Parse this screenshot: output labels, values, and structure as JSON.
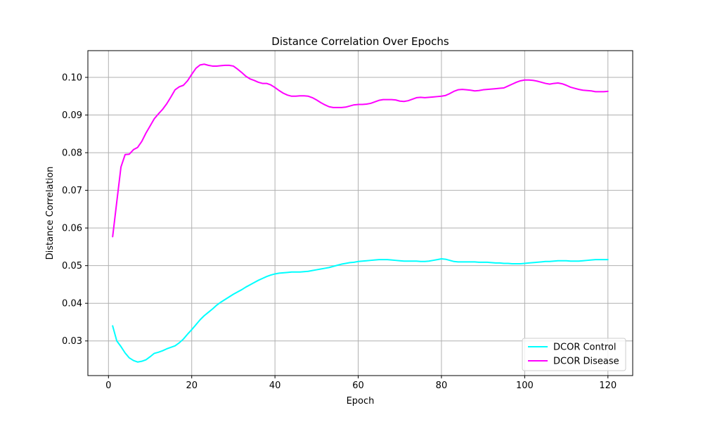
{
  "chart_data": {
    "type": "line",
    "title": "Distance Correlation Over Epochs",
    "xlabel": "Epoch",
    "ylabel": "Distance Correlation",
    "xlim": [
      -4.95,
      125.95
    ],
    "ylim": [
      0.0208,
      0.1071
    ],
    "xticks": [
      0,
      20,
      40,
      60,
      80,
      100,
      120
    ],
    "yticks": [
      0.03,
      0.04,
      0.05,
      0.06,
      0.07,
      0.08,
      0.09,
      0.1
    ],
    "ytick_labels": [
      "0.03",
      "0.04",
      "0.05",
      "0.06",
      "0.07",
      "0.08",
      "0.09",
      "0.10"
    ],
    "grid": true,
    "legend_position": "lower-right",
    "series": [
      {
        "name": "DCOR Control",
        "color": "#00ffff",
        "x": [
          1,
          2,
          3,
          4,
          5,
          6,
          7,
          8,
          9,
          10,
          11,
          12,
          13,
          14,
          15,
          16,
          17,
          18,
          19,
          20,
          21,
          22,
          23,
          24,
          25,
          26,
          27,
          28,
          29,
          30,
          31,
          32,
          33,
          34,
          35,
          36,
          37,
          38,
          39,
          40,
          41,
          42,
          43,
          44,
          45,
          46,
          47,
          48,
          49,
          50,
          51,
          52,
          53,
          54,
          55,
          56,
          57,
          58,
          59,
          60,
          61,
          62,
          63,
          64,
          65,
          66,
          67,
          68,
          69,
          70,
          71,
          72,
          73,
          74,
          75,
          76,
          77,
          78,
          79,
          80,
          81,
          82,
          83,
          84,
          85,
          86,
          87,
          88,
          89,
          90,
          91,
          92,
          93,
          94,
          95,
          96,
          97,
          98,
          99,
          100,
          101,
          102,
          103,
          104,
          105,
          106,
          107,
          108,
          109,
          110,
          111,
          112,
          113,
          114,
          115,
          116,
          117,
          118,
          119,
          120
        ],
        "y": [
          0.034,
          0.03,
          0.0285,
          0.0268,
          0.0255,
          0.0248,
          0.0244,
          0.0246,
          0.025,
          0.0258,
          0.0267,
          0.027,
          0.0274,
          0.0279,
          0.0283,
          0.0287,
          0.0295,
          0.0305,
          0.0318,
          0.033,
          0.0343,
          0.0356,
          0.0367,
          0.0376,
          0.0385,
          0.0395,
          0.0403,
          0.041,
          0.0417,
          0.0424,
          0.043,
          0.0436,
          0.0443,
          0.0449,
          0.0455,
          0.0461,
          0.0466,
          0.0471,
          0.0475,
          0.0478,
          0.048,
          0.0481,
          0.0482,
          0.0483,
          0.0483,
          0.0483,
          0.0484,
          0.0485,
          0.0487,
          0.0489,
          0.0491,
          0.0493,
          0.0495,
          0.0498,
          0.0501,
          0.0504,
          0.0506,
          0.0508,
          0.0509,
          0.0511,
          0.0512,
          0.0513,
          0.0514,
          0.0515,
          0.0516,
          0.0516,
          0.0516,
          0.0515,
          0.0514,
          0.0513,
          0.0512,
          0.0512,
          0.0512,
          0.0512,
          0.0511,
          0.0511,
          0.0512,
          0.0514,
          0.0516,
          0.0518,
          0.0517,
          0.0514,
          0.0511,
          0.051,
          0.051,
          0.051,
          0.051,
          0.051,
          0.0509,
          0.0509,
          0.0509,
          0.0508,
          0.0507,
          0.0507,
          0.0506,
          0.0506,
          0.0505,
          0.0505,
          0.0505,
          0.0506,
          0.0507,
          0.0508,
          0.0509,
          0.051,
          0.0511,
          0.0511,
          0.0512,
          0.0513,
          0.0513,
          0.0513,
          0.0512,
          0.0512,
          0.0512,
          0.0513,
          0.0514,
          0.0515,
          0.0516,
          0.0516,
          0.0516,
          0.0516
        ]
      },
      {
        "name": "DCOR Disease",
        "color": "#ff00ff",
        "x": [
          1,
          2,
          3,
          4,
          5,
          6,
          7,
          8,
          9,
          10,
          11,
          12,
          13,
          14,
          15,
          16,
          17,
          18,
          19,
          20,
          21,
          22,
          23,
          24,
          25,
          26,
          27,
          28,
          29,
          30,
          31,
          32,
          33,
          34,
          35,
          36,
          37,
          38,
          39,
          40,
          41,
          42,
          43,
          44,
          45,
          46,
          47,
          48,
          49,
          50,
          51,
          52,
          53,
          54,
          55,
          56,
          57,
          58,
          59,
          60,
          61,
          62,
          63,
          64,
          65,
          66,
          67,
          68,
          69,
          70,
          71,
          72,
          73,
          74,
          75,
          76,
          77,
          78,
          79,
          80,
          81,
          82,
          83,
          84,
          85,
          86,
          87,
          88,
          89,
          90,
          91,
          92,
          93,
          94,
          95,
          96,
          97,
          98,
          99,
          100,
          101,
          102,
          103,
          104,
          105,
          106,
          107,
          108,
          109,
          110,
          111,
          112,
          113,
          114,
          115,
          116,
          117,
          118,
          119,
          120
        ],
        "y": [
          0.0577,
          0.067,
          0.0762,
          0.0795,
          0.0796,
          0.0808,
          0.0814,
          0.083,
          0.0852,
          0.0871,
          0.089,
          0.0903,
          0.0915,
          0.093,
          0.0948,
          0.0967,
          0.0975,
          0.0979,
          0.0991,
          0.1008,
          0.1024,
          0.1033,
          0.1035,
          0.1032,
          0.103,
          0.103,
          0.1031,
          0.1032,
          0.1032,
          0.103,
          0.1022,
          0.1013,
          0.1003,
          0.0996,
          0.0992,
          0.0987,
          0.0984,
          0.0984,
          0.098,
          0.0973,
          0.0965,
          0.0958,
          0.0953,
          0.095,
          0.095,
          0.0951,
          0.0951,
          0.095,
          0.0946,
          0.094,
          0.0933,
          0.0927,
          0.0922,
          0.092,
          0.092,
          0.092,
          0.0921,
          0.0924,
          0.0927,
          0.0928,
          0.0928,
          0.0929,
          0.0931,
          0.0935,
          0.0939,
          0.0941,
          0.0941,
          0.0941,
          0.094,
          0.0937,
          0.0936,
          0.0938,
          0.0942,
          0.0946,
          0.0947,
          0.0946,
          0.0947,
          0.0948,
          0.0949,
          0.095,
          0.0952,
          0.0957,
          0.0963,
          0.0967,
          0.0968,
          0.0967,
          0.0966,
          0.0964,
          0.0965,
          0.0967,
          0.0968,
          0.0969,
          0.097,
          0.0971,
          0.0972,
          0.0977,
          0.0982,
          0.0987,
          0.0991,
          0.0993,
          0.0993,
          0.0992,
          0.099,
          0.0987,
          0.0984,
          0.0982,
          0.0984,
          0.0985,
          0.0983,
          0.0979,
          0.0974,
          0.0971,
          0.0968,
          0.0966,
          0.0965,
          0.0964,
          0.0962,
          0.0962,
          0.0962,
          0.0963
        ]
      }
    ]
  }
}
